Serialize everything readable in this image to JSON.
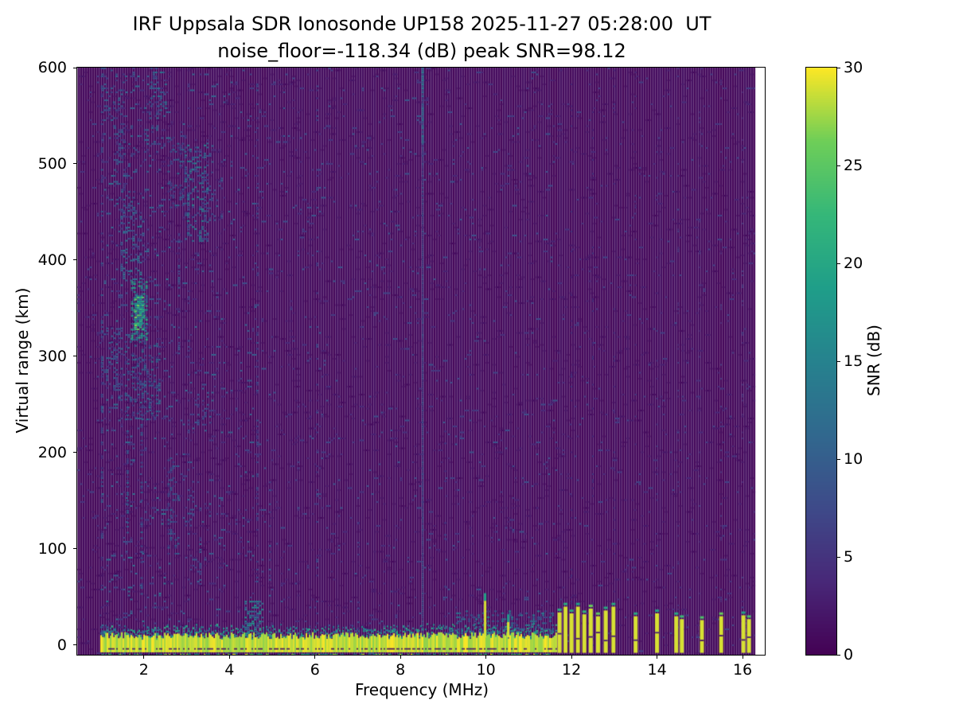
{
  "chart_data": {
    "type": "heatmap",
    "title": "IRF Uppsala SDR Ionosonde UP158 2025-11-27 05:28:00  UT",
    "subtitle": "noise_floor=-118.34 (dB) peak SNR=98.12",
    "xlabel": "Frequency (MHz)",
    "ylabel": "Virtual range (km)",
    "xlim": [
      0.44,
      16.52
    ],
    "ylim": [
      -10,
      600
    ],
    "x_ticks": [
      2,
      4,
      6,
      8,
      10,
      12,
      14,
      16
    ],
    "y_ticks": [
      0,
      100,
      200,
      300,
      400,
      500,
      600
    ],
    "noise_floor_db": -118.34,
    "peak_snr_db": 98.12,
    "colorbar": {
      "label": "SNR (dB)",
      "min": 0,
      "max": 30,
      "ticks": [
        0,
        5,
        10,
        15,
        20,
        25,
        30
      ],
      "colormap": "viridis"
    },
    "colormap_anchors": [
      [
        0.0,
        68,
        1,
        84
      ],
      [
        0.125,
        72,
        40,
        120
      ],
      [
        0.25,
        62,
        74,
        137
      ],
      [
        0.375,
        49,
        104,
        142
      ],
      [
        0.5,
        38,
        130,
        142
      ],
      [
        0.625,
        31,
        158,
        137
      ],
      [
        0.75,
        53,
        183,
        121
      ],
      [
        0.875,
        110,
        206,
        88
      ],
      [
        1.0,
        253,
        231,
        37
      ]
    ],
    "data_extent": {
      "f_min": 0.45,
      "f_max": 16.3
    },
    "features": {
      "ground_clutter_band": {
        "f0": 0.98,
        "f1": 11.63,
        "top_km": 9,
        "bottom_km": -7.5,
        "peak_value": 30
      },
      "noise_regions": [
        {
          "f0": 0.44,
          "f1": 1.0,
          "density": 0.05,
          "vmax": 6
        },
        {
          "f0": 1.0,
          "f1": 2.6,
          "density": 0.105,
          "vmax": 12
        },
        {
          "f0": 2.6,
          "f1": 4.6,
          "density": 0.075,
          "vmax": 10
        },
        {
          "f0": 4.6,
          "f1": 8.4,
          "density": 0.055,
          "vmax": 8
        },
        {
          "f0": 8.4,
          "f1": 11.65,
          "density": 0.055,
          "vmax": 8
        },
        {
          "f0": 11.65,
          "f1": 16.31,
          "density": 0.04,
          "vmax": 6
        }
      ],
      "echo_blobs": [
        {
          "f0": 1.7,
          "f1": 2.05,
          "km0": 318,
          "km1": 378,
          "density": 0.5,
          "v0": 8,
          "v1": 22
        },
        {
          "f0": 1.78,
          "f1": 1.98,
          "km0": 328,
          "km1": 362,
          "density": 0.75,
          "v0": 12,
          "v1": 27
        },
        {
          "f0": 1.45,
          "f1": 1.95,
          "km0": 378,
          "km1": 452,
          "density": 0.3,
          "v0": 5,
          "v1": 14
        },
        {
          "f0": 1.3,
          "f1": 1.8,
          "km0": 452,
          "km1": 540,
          "density": 0.22,
          "v0": 5,
          "v1": 12
        },
        {
          "f0": 1.55,
          "f1": 2.35,
          "km0": 235,
          "km1": 318,
          "density": 0.26,
          "v0": 5,
          "v1": 13
        },
        {
          "f0": 2.0,
          "f1": 2.5,
          "km0": 492,
          "km1": 565,
          "density": 0.18,
          "v0": 5,
          "v1": 12
        },
        {
          "f0": 2.55,
          "f1": 2.95,
          "km0": 455,
          "km1": 530,
          "density": 0.2,
          "v0": 5,
          "v1": 12
        },
        {
          "f0": 2.95,
          "f1": 3.5,
          "km0": 420,
          "km1": 522,
          "density": 0.28,
          "v0": 6,
          "v1": 16
        },
        {
          "f0": 3.4,
          "f1": 3.8,
          "km0": 440,
          "km1": 492,
          "density": 0.18,
          "v0": 5,
          "v1": 10
        },
        {
          "f0": 2.55,
          "f1": 2.8,
          "km0": 95,
          "km1": 195,
          "density": 0.22,
          "v0": 5,
          "v1": 11
        },
        {
          "f0": 3.25,
          "f1": 3.55,
          "km0": 220,
          "km1": 265,
          "density": 0.2,
          "v0": 5,
          "v1": 10
        },
        {
          "f0": 2.9,
          "f1": 3.15,
          "km0": 125,
          "km1": 185,
          "density": 0.15,
          "v0": 5,
          "v1": 10
        },
        {
          "f0": 1.05,
          "f1": 1.6,
          "km0": 530,
          "km1": 600,
          "density": 0.18,
          "v0": 5,
          "v1": 11
        },
        {
          "f0": 2.15,
          "f1": 2.5,
          "km0": 555,
          "km1": 600,
          "density": 0.25,
          "v0": 6,
          "v1": 14
        },
        {
          "f0": 1.0,
          "f1": 1.5,
          "km0": 240,
          "km1": 330,
          "density": 0.2,
          "v0": 5,
          "v1": 11
        },
        {
          "f0": 4.35,
          "f1": 4.75,
          "km0": 12,
          "km1": 46,
          "density": 0.38,
          "v0": 8,
          "v1": 18
        },
        {
          "f0": 9.3,
          "f1": 11.55,
          "km0": 12,
          "km1": 36,
          "density": 0.2,
          "v0": 7,
          "v1": 15
        }
      ],
      "interference_lines": [
        {
          "f": 1.02,
          "km0": 0,
          "km1": 600,
          "density": 0.25,
          "v0": 4,
          "v1": 10,
          "w": 3
        },
        {
          "f": 1.62,
          "km0": 110,
          "km1": 250,
          "density": 0.45,
          "v0": 5,
          "v1": 12,
          "w": 3
        },
        {
          "f": 1.95,
          "km0": 50,
          "km1": 240,
          "density": 0.3,
          "v0": 5,
          "v1": 11,
          "w": 3
        },
        {
          "f": 2.82,
          "km0": 300,
          "km1": 430,
          "density": 0.3,
          "v0": 5,
          "v1": 11,
          "w": 3
        },
        {
          "f": 3.05,
          "km0": 0,
          "km1": 600,
          "density": 0.12,
          "v0": 4,
          "v1": 8,
          "w": 3
        },
        {
          "f": 3.32,
          "km0": 55,
          "km1": 145,
          "density": 0.3,
          "v0": 5,
          "v1": 10,
          "w": 3
        },
        {
          "f": 4.65,
          "km0": 0,
          "km1": 600,
          "density": 0.18,
          "v0": 4,
          "v1": 9,
          "w": 3
        },
        {
          "f": 4.95,
          "km0": 0,
          "km1": 170,
          "density": 0.28,
          "v0": 5,
          "v1": 10,
          "w": 3
        },
        {
          "f": 6.05,
          "km0": 0,
          "km1": 600,
          "density": 0.12,
          "v0": 4,
          "v1": 8,
          "w": 3
        },
        {
          "f": 7.02,
          "km0": 0,
          "km1": 130,
          "density": 0.2,
          "v0": 4,
          "v1": 8,
          "w": 3
        },
        {
          "f": 8.52,
          "km0": 0,
          "km1": 600,
          "density": 1.0,
          "v0": 5,
          "v1": 9,
          "w": 2
        },
        {
          "f": 8.52,
          "km0": 520,
          "km1": 600,
          "density": 0.7,
          "v0": 8,
          "v1": 14,
          "w": 3
        },
        {
          "f": 9.05,
          "km0": 0,
          "km1": 260,
          "density": 0.14,
          "v0": 4,
          "v1": 8,
          "w": 3
        },
        {
          "f": 12.0,
          "km0": 0,
          "km1": 600,
          "density": 0.09,
          "v0": 3,
          "v1": 6,
          "w": 2
        },
        {
          "f": 12.5,
          "km0": 0,
          "km1": 600,
          "density": 0.09,
          "v0": 3,
          "v1": 6,
          "w": 2
        },
        {
          "f": 13.0,
          "km0": 0,
          "km1": 600,
          "density": 0.09,
          "v0": 3,
          "v1": 6,
          "w": 2
        },
        {
          "f": 13.5,
          "km0": 0,
          "km1": 600,
          "density": 0.09,
          "v0": 3,
          "v1": 6,
          "w": 2
        },
        {
          "f": 14.0,
          "km0": 0,
          "km1": 600,
          "density": 0.09,
          "v0": 3,
          "v1": 6,
          "w": 2
        },
        {
          "f": 14.5,
          "km0": 0,
          "km1": 600,
          "density": 0.09,
          "v0": 3,
          "v1": 6,
          "w": 2
        },
        {
          "f": 15.0,
          "km0": 0,
          "km1": 600,
          "density": 0.09,
          "v0": 3,
          "v1": 6,
          "w": 2
        },
        {
          "f": 15.5,
          "km0": 0,
          "km1": 600,
          "density": 0.09,
          "v0": 3,
          "v1": 6,
          "w": 2
        },
        {
          "f": 16.0,
          "km0": 0,
          "km1": 600,
          "density": 0.09,
          "v0": 3,
          "v1": 6,
          "w": 2
        }
      ],
      "spikes": [
        {
          "f": 9.98,
          "top_km": 46,
          "w": 3
        },
        {
          "f": 10.52,
          "top_km": 24,
          "w": 3
        }
      ],
      "rfi_pulses": [
        {
          "f": 11.72,
          "top_km": 34
        },
        {
          "f": 11.86,
          "top_km": 40
        },
        {
          "f": 12.0,
          "top_km": 33
        },
        {
          "f": 12.15,
          "top_km": 40
        },
        {
          "f": 12.3,
          "top_km": 32
        },
        {
          "f": 12.45,
          "top_km": 38
        },
        {
          "f": 12.62,
          "top_km": 30
        },
        {
          "f": 12.8,
          "top_km": 36
        },
        {
          "f": 12.98,
          "top_km": 40
        },
        {
          "f": 13.5,
          "top_km": 30
        },
        {
          "f": 14.0,
          "top_km": 33
        },
        {
          "f": 14.45,
          "top_km": 30
        },
        {
          "f": 14.58,
          "top_km": 27
        },
        {
          "f": 15.05,
          "top_km": 26
        },
        {
          "f": 15.5,
          "top_km": 30
        },
        {
          "f": 16.02,
          "top_km": 31
        },
        {
          "f": 16.15,
          "top_km": 27
        }
      ]
    }
  }
}
